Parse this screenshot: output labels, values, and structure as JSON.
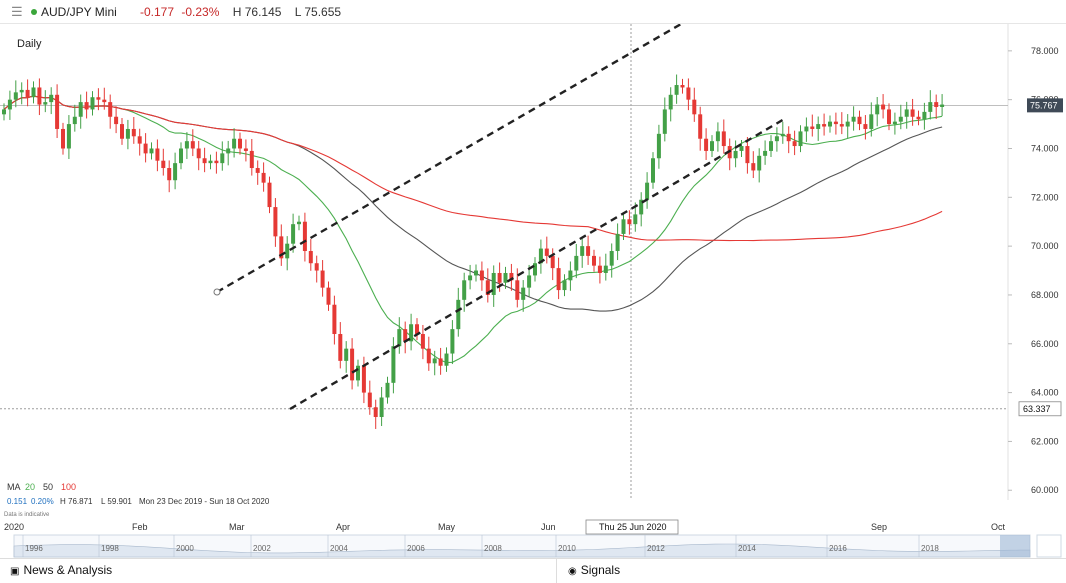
{
  "header": {
    "menu_icon": "hamburger-icon",
    "symbol": "AUD/JPY Mini",
    "change": "-0.177",
    "change_pct": "-0.23%",
    "high": "H 76.145",
    "low": "L 75.655",
    "status_color": "#3aa63a"
  },
  "footer": {
    "news_label": "News & Analysis",
    "signals_label": "Signals",
    "news_icon": "newspaper-icon",
    "signals_icon": "signal-icon"
  },
  "chart_data": {
    "type": "candlestick",
    "timeframe_label": "Daily",
    "y_ticks": [
      "78.000",
      "76.000",
      "74.000",
      "72.000",
      "70.000",
      "68.000",
      "66.000",
      "64.000",
      "62.000",
      "60.000"
    ],
    "y_range": [
      59.6,
      79.1
    ],
    "x_ticks": [
      "2020",
      "Feb",
      "Mar",
      "Apr",
      "May",
      "Jun",
      "Sep",
      "Oct"
    ],
    "current_price_label": "75.767",
    "current_price": 75.767,
    "crosshair_price_label": "63.337",
    "crosshair_price": 63.337,
    "crosshair_date_label": "Thu 25 Jun 2020",
    "ma_legend": {
      "label": "MA",
      "periods": [
        "20",
        "50",
        "100"
      ],
      "colors": [
        "#4caf50",
        "#333333",
        "#e53935"
      ]
    },
    "stats_line": {
      "values": [
        "0.151",
        "0.20%"
      ],
      "high": "H 76.871",
      "low": "L 59.901",
      "range": "Mon 23 Dec 2019 - Sun 18 Oct 2020"
    },
    "indicative_note": "Data is indicative",
    "navigator_years": [
      "1996",
      "1998",
      "2000",
      "2002",
      "2004",
      "2006",
      "2008",
      "2010",
      "2012",
      "2014",
      "2016",
      "2018"
    ],
    "colors": {
      "up": "#43a047",
      "down": "#e53935",
      "ma20": "#4caf50",
      "ma50": "#555555",
      "ma100": "#e53935",
      "channel": "#222222"
    },
    "closes": [
      75.6,
      76.0,
      76.3,
      76.4,
      76.1,
      76.5,
      75.8,
      75.9,
      76.2,
      74.8,
      74.0,
      75.0,
      75.3,
      75.9,
      75.6,
      76.1,
      76.0,
      75.9,
      75.3,
      75.0,
      74.4,
      74.8,
      74.5,
      74.2,
      73.8,
      74.0,
      73.5,
      73.2,
      72.7,
      73.4,
      74.0,
      74.3,
      74.0,
      73.6,
      73.4,
      73.5,
      73.4,
      73.8,
      74.0,
      74.4,
      74.0,
      73.9,
      73.2,
      73.0,
      72.6,
      71.6,
      70.4,
      69.5,
      70.1,
      70.9,
      71.0,
      69.8,
      69.3,
      69.0,
      68.3,
      67.6,
      66.4,
      65.3,
      65.8,
      64.5,
      65.1,
      64.0,
      63.4,
      63.0,
      63.8,
      64.4,
      65.9,
      66.6,
      66.1,
      66.8,
      66.4,
      65.8,
      65.2,
      65.4,
      65.1,
      65.6,
      66.6,
      67.8,
      68.6,
      68.8,
      69.0,
      68.6,
      68.0,
      68.9,
      68.5,
      68.9,
      68.6,
      67.8,
      68.3,
      68.8,
      69.3,
      69.9,
      69.6,
      69.1,
      68.2,
      68.6,
      69.0,
      69.6,
      70.0,
      69.6,
      69.2,
      68.9,
      69.2,
      69.8,
      70.5,
      71.1,
      70.9,
      71.3,
      71.9,
      72.6,
      73.6,
      74.6,
      75.6,
      76.2,
      76.6,
      76.5,
      76.0,
      75.4,
      74.4,
      73.9,
      74.3,
      74.7,
      74.1,
      73.6,
      73.9,
      74.1,
      73.4,
      73.1,
      73.7,
      73.9,
      74.3,
      74.5,
      74.6,
      74.3,
      74.1,
      74.7,
      74.9,
      74.8,
      75.0,
      74.9,
      75.1,
      75.0,
      74.9,
      75.1,
      75.3,
      75.0,
      74.8,
      75.4,
      75.8,
      75.6,
      75.0,
      75.1,
      75.3,
      75.6,
      75.3,
      75.2,
      75.5,
      75.9,
      75.7,
      75.8
    ]
  }
}
